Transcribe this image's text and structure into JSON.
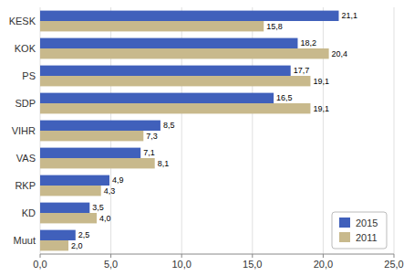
{
  "chart_data": {
    "type": "bar",
    "orientation": "horizontal",
    "categories": [
      "KESK",
      "KOK",
      "PS",
      "SDP",
      "VIHR",
      "VAS",
      "RKP",
      "KD",
      "Muut"
    ],
    "series": [
      {
        "name": "2015",
        "color": "#4060bb",
        "values": [
          21.1,
          18.2,
          17.7,
          16.5,
          8.5,
          7.1,
          4.9,
          3.5,
          2.5
        ],
        "value_labels": [
          "21,1",
          "18,2",
          "17,7",
          "16,5",
          "8,5",
          "7,1",
          "4,9",
          "3,5",
          "2,5"
        ]
      },
      {
        "name": "2011",
        "color": "#c8b98c",
        "values": [
          15.8,
          20.4,
          19.1,
          19.1,
          7.3,
          8.1,
          4.3,
          4.0,
          2.0
        ],
        "value_labels": [
          "15,8",
          "20,4",
          "19,1",
          "19,1",
          "7,3",
          "8,1",
          "4,3",
          "4,0",
          "2,0"
        ]
      }
    ],
    "xlim": [
      0,
      25.0
    ],
    "xticks": [
      {
        "value": 0.0,
        "label": "0,0"
      },
      {
        "value": 5.0,
        "label": "5,0"
      },
      {
        "value": 10.0,
        "label": "10,0"
      },
      {
        "value": 15.0,
        "label": "15,0"
      },
      {
        "value": 20.0,
        "label": "20,0"
      },
      {
        "value": 25.0,
        "label": "25,0"
      }
    ],
    "grid": true,
    "legend": "lower right",
    "data_labels": true
  }
}
